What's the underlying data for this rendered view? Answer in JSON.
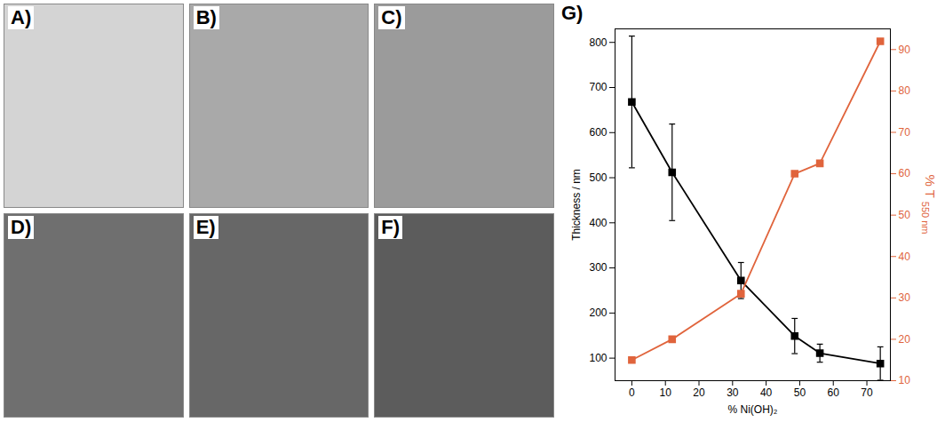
{
  "panels": [
    {
      "label": "A)",
      "color": "#d4d4d4"
    },
    {
      "label": "B)",
      "color": "#a9a9a9"
    },
    {
      "label": "C)",
      "color": "#9b9b9b"
    },
    {
      "label": "D)",
      "color": "#6f6f6f"
    },
    {
      "label": "E)",
      "color": "#676767"
    },
    {
      "label": "F)",
      "color": "#5c5c5c"
    }
  ],
  "chart_data": {
    "type": "line",
    "label": "G)",
    "xlabel": "% Ni(OH)₂",
    "ylabel": "Thickness / nm",
    "y2label": "% T",
    "y2label_subscript": "550 nm",
    "x": [
      0,
      12,
      32.5,
      48.5,
      56,
      74
    ],
    "xlim": [
      -5,
      77
    ],
    "xticks": [
      0,
      10,
      20,
      30,
      40,
      50,
      60,
      70
    ],
    "ylim": [
      50,
      830
    ],
    "yticks": [
      100,
      200,
      300,
      400,
      500,
      600,
      700,
      800
    ],
    "y2lim": [
      10,
      95
    ],
    "y2ticks": [
      10,
      20,
      30,
      40,
      50,
      60,
      70,
      80,
      90
    ],
    "series": [
      {
        "values": [
          668,
          512,
          272,
          149,
          111,
          88
        ],
        "error": [
          146,
          107,
          40,
          39,
          20,
          37
        ],
        "color": "#000000",
        "marker": "square"
      },
      {
        "values": [
          15,
          20,
          31,
          60,
          62.5,
          92
        ],
        "color": "#e0643c",
        "marker": "square",
        "axis": "y2"
      }
    ]
  }
}
